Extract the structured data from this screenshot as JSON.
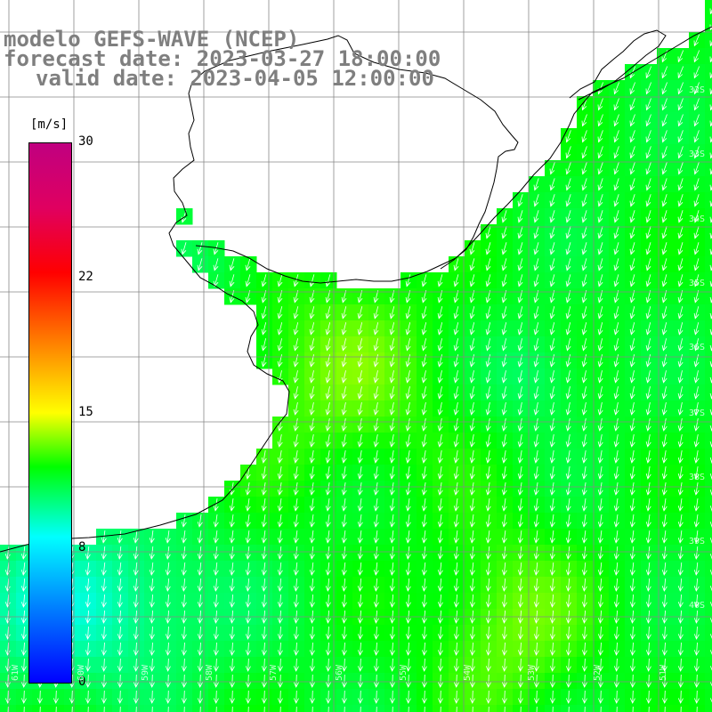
{
  "title": {
    "line1": "modelo GEFS-WAVE (NCEP)",
    "line2": "forecast date: 2023-03-27 18:00:00",
    "line3": "valid date: 2023-04-05 12:00:00"
  },
  "colorbar": {
    "unit": "[m/s]",
    "ticks": [
      "30",
      "22",
      "15",
      "8",
      "0"
    ],
    "range": [
      0,
      30
    ],
    "colors": [
      "#0000ff",
      "#0080ff",
      "#00ffff",
      "#00ff00",
      "#ffff00",
      "#ff8000",
      "#ff0000",
      "#cc0080"
    ]
  },
  "map": {
    "lon_labels": [
      "61W",
      "60W",
      "59W",
      "58W",
      "57W",
      "56W",
      "55W",
      "54W",
      "53W",
      "52W",
      "51W"
    ],
    "lat_labels": [
      "32S",
      "33S",
      "34S",
      "35S",
      "36S",
      "37S",
      "38S",
      "39S",
      "40S"
    ],
    "wind_speed_field": "ms",
    "wind_direction": "from north-northeast",
    "typical_speed_ms": [
      9,
      13
    ]
  }
}
